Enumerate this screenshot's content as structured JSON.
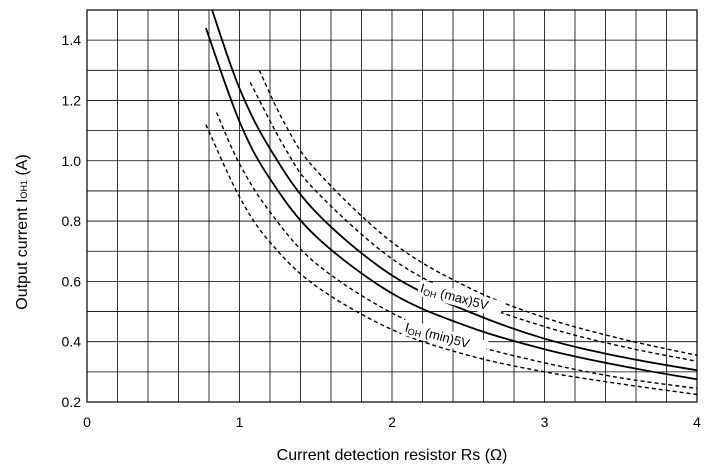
{
  "chart_data": {
    "type": "line",
    "title": "",
    "xlabel": "Current detection resistor Rs (Ω)",
    "ylabel": "Output current IOH1 (A)",
    "ylabel_parts": {
      "main": "Output current I",
      "sub": "OH1",
      "unit": " (A)"
    },
    "xlim": [
      0,
      4
    ],
    "ylim": [
      0.2,
      1.5
    ],
    "x_ticks": [
      "0",
      "1",
      "2",
      "3",
      "4"
    ],
    "y_ticks": [
      "0.2",
      "0.4",
      "0.6",
      "0.8",
      "1.0",
      "1.2",
      "1.4"
    ],
    "grid": true,
    "legend": "none",
    "series": [
      {
        "style": "solid",
        "x": [
          0.82,
          1.0,
          1.2,
          1.5,
          2.0,
          2.5,
          3.0,
          3.5,
          4.0
        ],
        "y": [
          1.5,
          1.24,
          1.04,
          0.83,
          0.62,
          0.5,
          0.41,
          0.35,
          0.305
        ]
      },
      {
        "style": "solid",
        "x": [
          0.78,
          1.0,
          1.2,
          1.5,
          2.0,
          2.5,
          3.0,
          3.5,
          4.0
        ],
        "y": [
          1.44,
          1.13,
          0.94,
          0.75,
          0.56,
          0.45,
          0.375,
          0.32,
          0.275
        ]
      },
      {
        "style": "dashed",
        "x": [
          1.13,
          1.3,
          1.5,
          2.0,
          2.5,
          3.0,
          3.5,
          4.0
        ],
        "y": [
          1.3,
          1.12,
          0.97,
          0.73,
          0.58,
          0.48,
          0.41,
          0.355
        ]
      },
      {
        "style": "dashed",
        "x": [
          1.07,
          1.3,
          1.5,
          2.0,
          2.5,
          3.0,
          3.5,
          4.0
        ],
        "y": [
          1.26,
          1.04,
          0.9,
          0.675,
          0.54,
          0.45,
          0.385,
          0.335
        ]
      },
      {
        "style": "dashed",
        "x": [
          0.85,
          1.0,
          1.2,
          1.5,
          2.0,
          2.5,
          3.0,
          3.5,
          4.0
        ],
        "y": [
          1.16,
          0.99,
          0.83,
          0.66,
          0.495,
          0.395,
          0.33,
          0.28,
          0.245
        ]
      },
      {
        "style": "dashed",
        "x": [
          0.78,
          1.0,
          1.2,
          1.5,
          2.0,
          2.5,
          3.0,
          3.5,
          4.0
        ],
        "y": [
          1.12,
          0.88,
          0.73,
          0.585,
          0.44,
          0.355,
          0.3,
          0.26,
          0.225
        ]
      }
    ],
    "annotations": [
      {
        "main": "I",
        "sub": "OH",
        "rest": " (max)5V",
        "x": 2.18,
        "y": 0.565,
        "angle": 15
      },
      {
        "main": "I",
        "sub": "OH",
        "rest": " (min)5V",
        "x": 2.08,
        "y": 0.435,
        "angle": 15
      }
    ]
  }
}
